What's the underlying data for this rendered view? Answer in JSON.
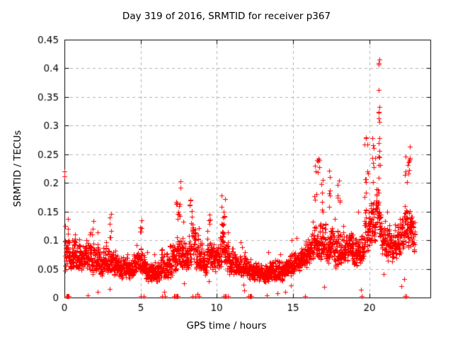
{
  "chart_data": {
    "type": "scatter",
    "title": "Day 319 of 2016, SRMTID for receiver p367",
    "xlabel": "GPS time / hours",
    "ylabel": "SRMTID / TECUs",
    "xlim": [
      0,
      24
    ],
    "ylim": [
      0,
      0.45
    ],
    "xticks": {
      "values": [
        0,
        5,
        10,
        15,
        20
      ],
      "labels": [
        "0",
        "5",
        "10",
        "15",
        "20"
      ]
    },
    "yticks": {
      "values": [
        0,
        0.05,
        0.1,
        0.15,
        0.2,
        0.25,
        0.3,
        0.35,
        0.4,
        0.45
      ],
      "labels": [
        "0",
        "0.05",
        "0.1",
        "0.15",
        "0.2",
        "0.25",
        "0.3",
        "0.35",
        "0.4",
        "0.45"
      ]
    },
    "grid": {
      "show": true,
      "style": "dashed",
      "color": "#b2b2b2"
    },
    "axis_color": "#000000",
    "marker": {
      "shape": "plus",
      "color": "#ff0000",
      "size": 7
    },
    "legend": "none",
    "series": [
      {
        "name": "SRMTID",
        "model": {
          "t_start": 0.02,
          "t_end": 23.0,
          "points_per_hour": 120,
          "band_envelope": [
            {
              "h": 0.0,
              "lo": 0.04,
              "hi": 0.125
            },
            {
              "h": 0.5,
              "lo": 0.045,
              "hi": 0.12
            },
            {
              "h": 1.0,
              "lo": 0.04,
              "hi": 0.115
            },
            {
              "h": 1.8,
              "lo": 0.04,
              "hi": 0.11
            },
            {
              "h": 2.2,
              "lo": 0.032,
              "hi": 0.1
            },
            {
              "h": 2.8,
              "lo": 0.035,
              "hi": 0.105
            },
            {
              "h": 3.2,
              "lo": 0.03,
              "hi": 0.09
            },
            {
              "h": 3.8,
              "lo": 0.027,
              "hi": 0.082
            },
            {
              "h": 4.4,
              "lo": 0.028,
              "hi": 0.08
            },
            {
              "h": 5.0,
              "lo": 0.035,
              "hi": 0.1
            },
            {
              "h": 5.4,
              "lo": 0.022,
              "hi": 0.072
            },
            {
              "h": 6.0,
              "lo": 0.02,
              "hi": 0.07
            },
            {
              "h": 6.5,
              "lo": 0.028,
              "hi": 0.092
            },
            {
              "h": 7.0,
              "lo": 0.03,
              "hi": 0.085
            },
            {
              "h": 7.5,
              "lo": 0.05,
              "hi": 0.135
            },
            {
              "h": 8.0,
              "lo": 0.04,
              "hi": 0.11
            },
            {
              "h": 8.3,
              "lo": 0.05,
              "hi": 0.135
            },
            {
              "h": 8.7,
              "lo": 0.04,
              "hi": 0.115
            },
            {
              "h": 9.2,
              "lo": 0.035,
              "hi": 0.1
            },
            {
              "h": 9.6,
              "lo": 0.04,
              "hi": 0.115
            },
            {
              "h": 10.0,
              "lo": 0.04,
              "hi": 0.105
            },
            {
              "h": 10.4,
              "lo": 0.05,
              "hi": 0.14
            },
            {
              "h": 10.8,
              "lo": 0.035,
              "hi": 0.105
            },
            {
              "h": 11.3,
              "lo": 0.03,
              "hi": 0.088
            },
            {
              "h": 12.0,
              "lo": 0.026,
              "hi": 0.08
            },
            {
              "h": 12.6,
              "lo": 0.024,
              "hi": 0.072
            },
            {
              "h": 13.1,
              "lo": 0.02,
              "hi": 0.065
            },
            {
              "h": 13.7,
              "lo": 0.024,
              "hi": 0.07
            },
            {
              "h": 14.3,
              "lo": 0.028,
              "hi": 0.075
            },
            {
              "h": 15.0,
              "lo": 0.035,
              "hi": 0.088
            },
            {
              "h": 15.6,
              "lo": 0.045,
              "hi": 0.1
            },
            {
              "h": 16.1,
              "lo": 0.05,
              "hi": 0.115
            },
            {
              "h": 16.6,
              "lo": 0.06,
              "hi": 0.15
            },
            {
              "h": 17.0,
              "lo": 0.055,
              "hi": 0.14
            },
            {
              "h": 17.4,
              "lo": 0.05,
              "hi": 0.135
            },
            {
              "h": 17.8,
              "lo": 0.05,
              "hi": 0.13
            },
            {
              "h": 18.1,
              "lo": 0.055,
              "hi": 0.145
            },
            {
              "h": 18.5,
              "lo": 0.05,
              "hi": 0.125
            },
            {
              "h": 19.0,
              "lo": 0.05,
              "hi": 0.13
            },
            {
              "h": 19.5,
              "lo": 0.055,
              "hi": 0.145
            },
            {
              "h": 19.9,
              "lo": 0.07,
              "hi": 0.175
            },
            {
              "h": 20.3,
              "lo": 0.09,
              "hi": 0.2
            },
            {
              "h": 20.6,
              "lo": 0.1,
              "hi": 0.21
            },
            {
              "h": 20.9,
              "lo": 0.06,
              "hi": 0.15
            },
            {
              "h": 21.4,
              "lo": 0.055,
              "hi": 0.13
            },
            {
              "h": 21.9,
              "lo": 0.065,
              "hi": 0.14
            },
            {
              "h": 22.3,
              "lo": 0.08,
              "hi": 0.18
            },
            {
              "h": 22.6,
              "lo": 0.08,
              "hi": 0.19
            },
            {
              "h": 23.0,
              "lo": 0.06,
              "hi": 0.155
            }
          ],
          "plumes": [
            {
              "h": 1.75,
              "w": 0.3,
              "vmin": 0.11,
              "vmax": 0.148,
              "n": 5
            },
            {
              "h": 3.0,
              "w": 0.15,
              "vmin": 0.1,
              "vmax": 0.148,
              "n": 6
            },
            {
              "h": 5.0,
              "w": 0.12,
              "vmin": 0.1,
              "vmax": 0.147,
              "n": 5
            },
            {
              "h": 7.5,
              "w": 0.3,
              "vmin": 0.12,
              "vmax": 0.168,
              "n": 9
            },
            {
              "h": 7.62,
              "w": 0.06,
              "vmin": 0.188,
              "vmax": 0.206,
              "n": 2
            },
            {
              "h": 8.3,
              "w": 0.2,
              "vmin": 0.125,
              "vmax": 0.19,
              "n": 8
            },
            {
              "h": 9.5,
              "w": 0.12,
              "vmin": 0.11,
              "vmax": 0.152,
              "n": 4
            },
            {
              "h": 10.4,
              "w": 0.25,
              "vmin": 0.12,
              "vmax": 0.188,
              "n": 9
            },
            {
              "h": 16.55,
              "w": 0.3,
              "vmin": 0.17,
              "vmax": 0.268,
              "n": 11
            },
            {
              "h": 16.9,
              "w": 0.15,
              "vmin": 0.15,
              "vmax": 0.225,
              "n": 6
            },
            {
              "h": 17.35,
              "w": 0.12,
              "vmin": 0.15,
              "vmax": 0.226,
              "n": 6
            },
            {
              "h": 18.0,
              "w": 0.18,
              "vmin": 0.15,
              "vmax": 0.224,
              "n": 7
            },
            {
              "h": 19.8,
              "w": 0.2,
              "vmin": 0.17,
              "vmax": 0.287,
              "n": 9
            },
            {
              "h": 20.3,
              "w": 0.25,
              "vmin": 0.2,
              "vmax": 0.287,
              "n": 8
            },
            {
              "h": 20.64,
              "w": 0.1,
              "vmin": 0.23,
              "vmax": 0.417,
              "n": 16
            },
            {
              "h": 22.5,
              "w": 0.35,
              "vmin": 0.2,
              "vmax": 0.272,
              "n": 12
            }
          ],
          "zero_marker_hours": [
            0.13,
            0.18,
            0.23,
            0.28,
            5.03,
            5.18,
            6.42,
            6.58,
            7.2,
            7.26,
            7.32,
            7.38,
            7.44,
            8.42,
            8.58,
            8.82,
            10.46,
            10.52,
            10.6,
            10.72,
            12.08,
            12.14,
            12.2,
            12.26,
            15.8,
            19.52,
            22.32,
            22.44
          ],
          "edge_points": [
            {
              "h": 0.02,
              "v": 0.22
            },
            {
              "h": 0.02,
              "v": 0.212
            }
          ],
          "max_point": {
            "h": 20.66,
            "v": 0.415
          }
        }
      }
    ]
  }
}
